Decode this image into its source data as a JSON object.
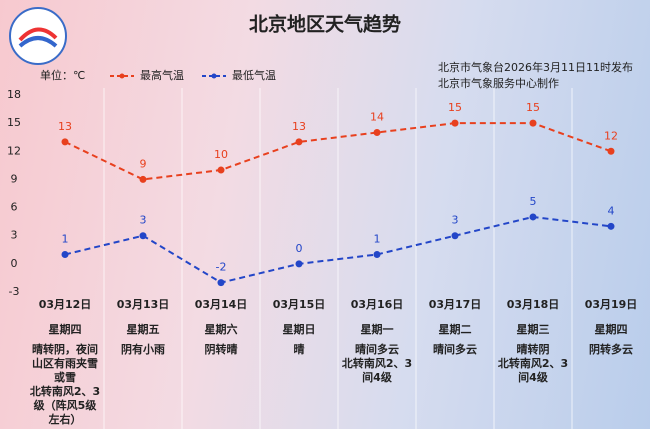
{
  "chart_data": {
    "type": "line",
    "title": "北京地区天气趋势",
    "unit_label": "单位：℃",
    "notes": [
      "北京市气象台2026年3月11日11时发布",
      "北京市气象服务中心制作"
    ],
    "categories": [
      "03月12日",
      "03月13日",
      "03月14日",
      "03月15日",
      "03月16日",
      "03月17日",
      "03月18日",
      "03月19日"
    ],
    "weekdays": [
      "星期四",
      "星期五",
      "星期六",
      "星期日",
      "星期一",
      "星期二",
      "星期三",
      "星期四"
    ],
    "weather": [
      "晴转阴，夜间山区有雨夹雪或雪",
      "阴有小雨",
      "阴转晴",
      "晴",
      "晴间多云",
      "晴间多云",
      "晴转阴",
      "阴转多云"
    ],
    "wind": [
      "北转南风2、3级（阵风5级左右）",
      null,
      null,
      null,
      "北转南风2、3间4级",
      null,
      "北转南风2、3间4级",
      null
    ],
    "series": [
      {
        "name": "最高气温",
        "color": "#e8401e",
        "values": [
          13,
          9,
          10,
          13,
          14,
          15,
          15,
          12
        ]
      },
      {
        "name": "最低气温",
        "color": "#2346c8",
        "values": [
          1,
          3,
          -2,
          0,
          1,
          3,
          5,
          4
        ]
      }
    ],
    "ylim": [
      -3,
      18
    ],
    "yticks": [
      18,
      15,
      12,
      9,
      6,
      3,
      0,
      -3
    ]
  }
}
